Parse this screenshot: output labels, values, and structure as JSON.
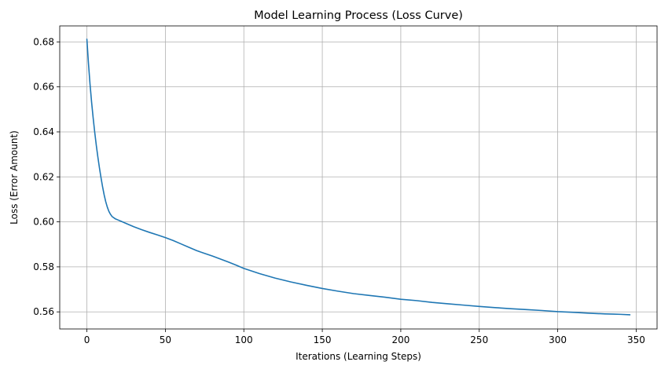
{
  "chart_data": {
    "type": "line",
    "title": "Model Learning Process (Loss Curve)",
    "xlabel": "Iterations (Learning Steps)",
    "ylabel": "Loss (Error Amount)",
    "xlim": [
      -17.3,
      363.3
    ],
    "ylim": [
      0.5524,
      0.6871
    ],
    "xticks": [
      0,
      50,
      100,
      150,
      200,
      250,
      300,
      350
    ],
    "yticks": [
      0.56,
      0.58,
      0.6,
      0.62,
      0.64,
      0.66,
      0.68
    ],
    "xtick_labels": [
      "0",
      "50",
      "100",
      "150",
      "200",
      "250",
      "300",
      "350"
    ],
    "ytick_labels": [
      "0.56",
      "0.58",
      "0.60",
      "0.62",
      "0.64",
      "0.66",
      "0.68"
    ],
    "grid": true,
    "line_color": "#1f77b4",
    "series": [
      {
        "x": [
          0,
          1,
          2,
          3,
          4,
          5,
          6,
          7,
          8,
          9,
          10,
          11,
          12,
          13,
          14,
          15,
          16,
          18,
          20,
          22,
          25,
          30,
          35,
          40,
          45,
          50,
          55,
          60,
          65,
          70,
          75,
          80,
          85,
          90,
          95,
          100,
          110,
          120,
          130,
          140,
          150,
          160,
          170,
          180,
          190,
          200,
          210,
          220,
          230,
          240,
          250,
          260,
          270,
          280,
          290,
          300,
          310,
          320,
          330,
          335,
          340,
          346
        ],
        "y": [
          0.6812,
          0.6705,
          0.6612,
          0.6532,
          0.6462,
          0.6398,
          0.634,
          0.6288,
          0.624,
          0.6196,
          0.6156,
          0.612,
          0.609,
          0.6066,
          0.6047,
          0.6034,
          0.6024,
          0.6014,
          0.6008,
          0.6002,
          0.5993,
          0.5978,
          0.5965,
          0.5953,
          0.5942,
          0.593,
          0.5917,
          0.5902,
          0.5887,
          0.5872,
          0.586,
          0.5848,
          0.5835,
          0.5822,
          0.5808,
          0.5793,
          0.577,
          0.575,
          0.5733,
          0.5718,
          0.5704,
          0.5692,
          0.5681,
          0.5673,
          0.5665,
          0.5656,
          0.565,
          0.5642,
          0.5636,
          0.563,
          0.5624,
          0.5619,
          0.5614,
          0.561,
          0.5606,
          0.5601,
          0.5598,
          0.5594,
          0.5591,
          0.559,
          0.5589,
          0.5587
        ]
      }
    ]
  }
}
